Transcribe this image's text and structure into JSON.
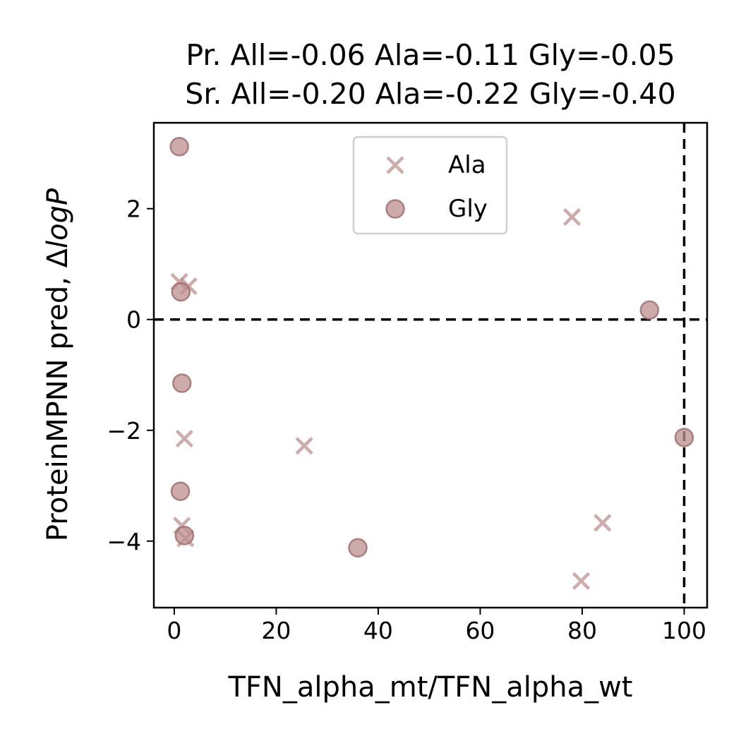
{
  "chart_data": {
    "type": "scatter",
    "title_lines": [
      "Pr. All=-0.06 Ala=-0.11 Gly=-0.05",
      "Sr. All=-0.20 Ala=-0.22 Gly=-0.40"
    ],
    "xlabel": "TFN_alpha_mt/TFN_alpha_wt",
    "ylabel_prefix": "ProteinMPNN pred, Δ",
    "ylabel_italic": "logP",
    "xlim": [
      -4,
      104.5
    ],
    "ylim": [
      -5.2,
      3.55
    ],
    "xticks": [
      0,
      20,
      40,
      60,
      80,
      100
    ],
    "xtick_labels": [
      "0",
      "20",
      "40",
      "60",
      "80",
      "100"
    ],
    "yticks": [
      -4,
      -2,
      0,
      2
    ],
    "ytick_labels": [
      "−4",
      "−2",
      "0",
      "2"
    ],
    "hline": 0,
    "vline": 100,
    "grid": false,
    "legend_position": "top-center",
    "color": "#bc8f8f",
    "series": [
      {
        "name": "Ala",
        "marker": "x",
        "points": [
          [
            1.0,
            0.68
          ],
          [
            2.8,
            0.6
          ],
          [
            78.0,
            1.85
          ],
          [
            2.0,
            -2.15
          ],
          [
            25.5,
            -2.28
          ],
          [
            1.5,
            -3.72
          ],
          [
            2.2,
            -3.95
          ],
          [
            84.0,
            -3.67
          ],
          [
            79.8,
            -4.72
          ]
        ]
      },
      {
        "name": "Gly",
        "marker": "o",
        "points": [
          [
            1.0,
            3.12
          ],
          [
            1.3,
            0.5
          ],
          [
            93.2,
            0.17
          ],
          [
            1.5,
            -1.15
          ],
          [
            100.0,
            -2.13
          ],
          [
            1.2,
            -3.1
          ],
          [
            2.0,
            -3.9
          ],
          [
            36.0,
            -4.12
          ]
        ]
      }
    ]
  }
}
